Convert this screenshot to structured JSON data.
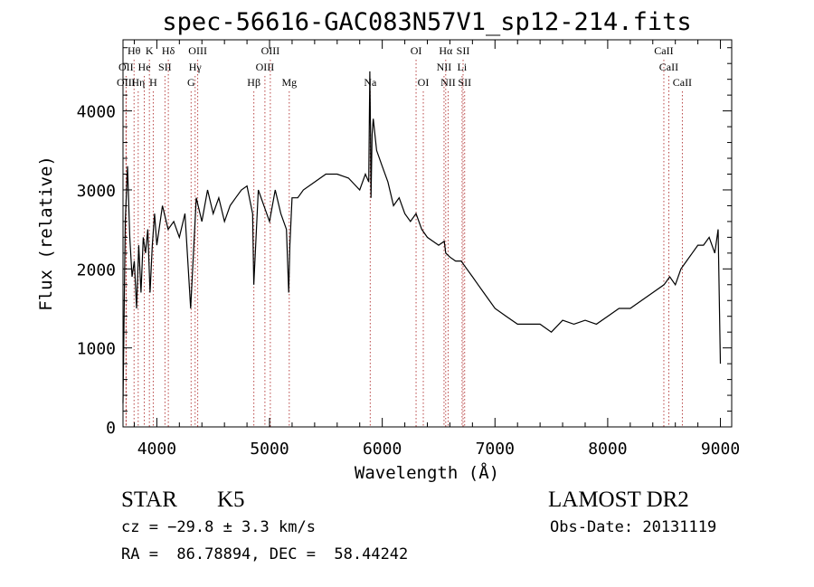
{
  "chart_data": {
    "type": "line",
    "title": "spec-56616-GAC083N57V1_sp12-214.fits",
    "xlabel": "Wavelength (Å)",
    "ylabel": "Flux (relative)",
    "xlim": [
      3700,
      9100
    ],
    "ylim": [
      0,
      4900
    ],
    "xticks": [
      4000,
      5000,
      6000,
      7000,
      8000,
      9000
    ],
    "yticks": [
      0,
      1000,
      2000,
      3000,
      4000
    ],
    "grid": false,
    "line_color": "#000000",
    "marker_color": "#b03030",
    "series": [
      {
        "x": [
          3700,
          3720,
          3740,
          3760,
          3780,
          3800,
          3820,
          3840,
          3860,
          3880,
          3900,
          3920,
          3940,
          3960,
          3980,
          4000,
          4050,
          4100,
          4150,
          4200,
          4250,
          4300,
          4350,
          4400,
          4450,
          4500,
          4550,
          4600,
          4650,
          4700,
          4750,
          4800,
          4850,
          4860,
          4900,
          4950,
          5000,
          5050,
          5100,
          5150,
          5170,
          5180,
          5200,
          5250,
          5300,
          5400,
          5500,
          5600,
          5700,
          5800,
          5850,
          5880,
          5890,
          5895,
          5900,
          5910,
          5920,
          5950,
          6000,
          6050,
          6100,
          6150,
          6200,
          6250,
          6300,
          6350,
          6400,
          6450,
          6500,
          6550,
          6563,
          6600,
          6650,
          6700,
          6750,
          6800,
          6850,
          6900,
          7000,
          7100,
          7200,
          7300,
          7400,
          7500,
          7600,
          7700,
          7800,
          7900,
          8000,
          8100,
          8200,
          8300,
          8400,
          8500,
          8550,
          8600,
          8650,
          8700,
          8750,
          8800,
          8850,
          8900,
          8950,
          8980,
          9000
        ],
        "y": [
          300,
          2600,
          3300,
          2400,
          1900,
          2100,
          1500,
          2300,
          1700,
          2400,
          2200,
          2500,
          1700,
          2300,
          2700,
          2300,
          2800,
          2500,
          2600,
          2400,
          2700,
          1500,
          2900,
          2600,
          3000,
          2700,
          2900,
          2600,
          2800,
          2900,
          3000,
          3050,
          2700,
          1800,
          3000,
          2800,
          2600,
          3000,
          2700,
          2500,
          1700,
          2300,
          2900,
          2900,
          3000,
          3100,
          3200,
          3200,
          3150,
          3000,
          3200,
          3100,
          4500,
          3800,
          2900,
          3700,
          3900,
          3500,
          3300,
          3100,
          2800,
          2900,
          2700,
          2600,
          2700,
          2500,
          2400,
          2350,
          2300,
          2350,
          2200,
          2150,
          2100,
          2100,
          2000,
          1900,
          1800,
          1700,
          1500,
          1400,
          1300,
          1300,
          1300,
          1200,
          1350,
          1300,
          1350,
          1300,
          1400,
          1500,
          1500,
          1600,
          1700,
          1800,
          1900,
          1800,
          2000,
          2100,
          2200,
          2300,
          2300,
          2400,
          2200,
          2500,
          800
        ]
      }
    ]
  },
  "lines": {
    "row1": [
      {
        "label": "Hθ",
        "wl": 3798
      },
      {
        "label": "K",
        "wl": 3934
      },
      {
        "label": "Hδ",
        "wl": 4102
      },
      {
        "label": "OIII",
        "wl": 4363
      },
      {
        "label": "OIII",
        "wl": 5007
      },
      {
        "label": "OI",
        "wl": 6300
      },
      {
        "label": "Hα",
        "wl": 6563
      },
      {
        "label": "SII",
        "wl": 6717
      },
      {
        "label": "CaII",
        "wl": 8498
      }
    ],
    "row2": [
      {
        "label": "OII",
        "wl": 3727
      },
      {
        "label": "He",
        "wl": 3889
      },
      {
        "label": "SII",
        "wl": 4072
      },
      {
        "label": "Hγ",
        "wl": 4340
      },
      {
        "label": "OIII",
        "wl": 4959
      },
      {
        "label": "NII",
        "wl": 6548
      },
      {
        "label": "Li",
        "wl": 6708
      },
      {
        "label": "CaII",
        "wl": 8542
      }
    ],
    "row3": [
      {
        "label": "OIII",
        "wl": 3727
      },
      {
        "label": "Hη",
        "wl": 3835
      },
      {
        "label": "H",
        "wl": 3968
      },
      {
        "label": "G",
        "wl": 4304
      },
      {
        "label": "Hβ",
        "wl": 4861
      },
      {
        "label": "Mg",
        "wl": 5175
      },
      {
        "label": "Na",
        "wl": 5893
      },
      {
        "label": "OI",
        "wl": 6364
      },
      {
        "label": "NII",
        "wl": 6584
      },
      {
        "label": "SII",
        "wl": 6731
      },
      {
        "label": "CaII",
        "wl": 8662
      }
    ]
  },
  "info": {
    "object_class": "STAR",
    "subclass": "K5",
    "cz": "cz = −29.8 ± 3.3 km/s",
    "coords": "RA =  86.78894, DEC =  58.44242",
    "survey": "LAMOST DR2",
    "obs_date": "Obs-Date: 20131119"
  }
}
